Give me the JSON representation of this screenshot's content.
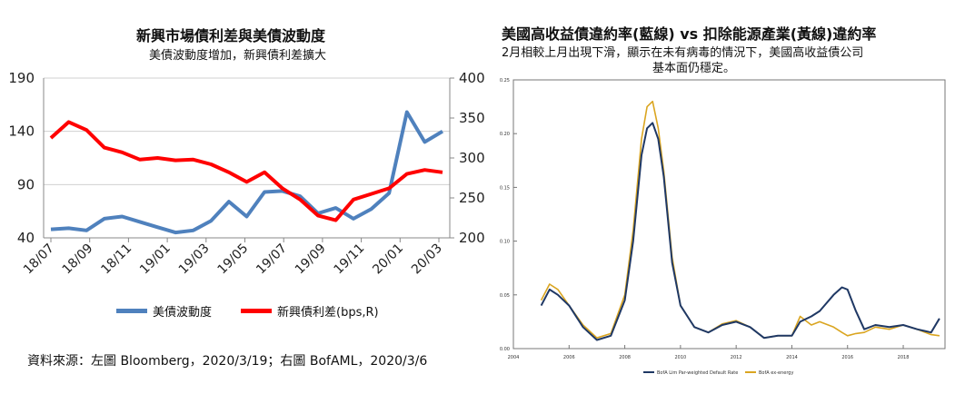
{
  "source_note": "資料來源：左圖 Bloomberg，2020/3/19；右圖 BofAML，2020/3/6",
  "chart_data": [
    {
      "type": "line",
      "title": "新興市場債利差與美債波動度",
      "subtitle": "美債波動度增加，新興債利差擴大",
      "x_tick_labels": [
        "18/07",
        "18/09",
        "18/11",
        "19/01",
        "19/03",
        "19/05",
        "19/07",
        "19/09",
        "19/11",
        "20/01",
        "20/03"
      ],
      "y_left_ticks": [
        "190",
        "140",
        "90",
        "40"
      ],
      "y_right_ticks": [
        "400",
        "350",
        "300",
        "250",
        "200"
      ],
      "ylim_left": [
        40,
        190
      ],
      "ylim_right": [
        200,
        400
      ],
      "grid": "horizontal",
      "legend_position": "bottom",
      "x": [
        "2018-07",
        "2018-08",
        "2018-09",
        "2018-10",
        "2018-11",
        "2018-12",
        "2019-01",
        "2019-02",
        "2019-03",
        "2019-04",
        "2019-05",
        "2019-06",
        "2019-07",
        "2019-08",
        "2019-09",
        "2019-10",
        "2019-11",
        "2019-12",
        "2020-01",
        "2020-02",
        "2020-03a",
        "2020-03b",
        "2020-03c"
      ],
      "series": [
        {
          "name": "美債波動度",
          "axis": "left",
          "color": "#4F81BD",
          "values": [
            48,
            49,
            47,
            58,
            60,
            55,
            50,
            45,
            47,
            56,
            74,
            60,
            83,
            84,
            79,
            63,
            68,
            58,
            67,
            82,
            158,
            130,
            140
          ]
        },
        {
          "name": "新興債利差(bps,R)",
          "axis": "right",
          "color": "#FF0000",
          "values": [
            325,
            345,
            335,
            313,
            307,
            298,
            300,
            297,
            298,
            292,
            282,
            270,
            282,
            262,
            248,
            228,
            222,
            248,
            255,
            262,
            280,
            285,
            282
          ]
        }
      ]
    },
    {
      "type": "line",
      "title": "美國高收益債違約率(藍線) vs 扣除能源產業(黃線)違約率",
      "subtitle_line1": "2月相較上月出現下滑，顯示在未有病毒的情況下，美國高收益債公司",
      "subtitle_line2": "基本面仍穩定。",
      "x_tick_labels": [
        "2004",
        "2006",
        "2008",
        "2010",
        "2012",
        "2014",
        "2016",
        "2018"
      ],
      "y_ticks": [
        "0.25",
        "0.20",
        "0.15",
        "0.10",
        "0.05",
        "0.00"
      ],
      "ylim": [
        0,
        0.25
      ],
      "xlim": [
        2004,
        2019.5
      ],
      "grid": "none",
      "legend_position": "bottom",
      "x": [
        2005.0,
        2005.3,
        2005.6,
        2006.0,
        2006.5,
        2007.0,
        2007.5,
        2008.0,
        2008.3,
        2008.6,
        2008.8,
        2009.0,
        2009.2,
        2009.4,
        2009.7,
        2010.0,
        2010.5,
        2011.0,
        2011.5,
        2012.0,
        2012.5,
        2013.0,
        2013.5,
        2014.0,
        2014.3,
        2014.7,
        2015.0,
        2015.5,
        2015.8,
        2016.0,
        2016.3,
        2016.6,
        2017.0,
        2017.5,
        2018.0,
        2018.5,
        2019.0,
        2019.3
      ],
      "series": [
        {
          "name": "BofA Lim Par-weighted Default Rate",
          "color": "#1F3864",
          "values": [
            0.04,
            0.055,
            0.05,
            0.04,
            0.02,
            0.008,
            0.012,
            0.045,
            0.1,
            0.18,
            0.205,
            0.21,
            0.195,
            0.16,
            0.08,
            0.04,
            0.02,
            0.015,
            0.022,
            0.025,
            0.02,
            0.01,
            0.012,
            0.012,
            0.025,
            0.03,
            0.035,
            0.05,
            0.057,
            0.055,
            0.035,
            0.018,
            0.022,
            0.02,
            0.022,
            0.018,
            0.015,
            0.028
          ]
        },
        {
          "name": "BofA ex-energy",
          "color": "#DAA520",
          "values": [
            0.045,
            0.06,
            0.055,
            0.04,
            0.022,
            0.01,
            0.014,
            0.05,
            0.11,
            0.195,
            0.225,
            0.23,
            0.205,
            0.165,
            0.085,
            0.04,
            0.02,
            0.015,
            0.023,
            0.026,
            0.02,
            0.01,
            0.012,
            0.012,
            0.03,
            0.022,
            0.025,
            0.02,
            0.015,
            0.012,
            0.014,
            0.015,
            0.02,
            0.018,
            0.022,
            0.018,
            0.013,
            0.012
          ]
        }
      ]
    }
  ]
}
